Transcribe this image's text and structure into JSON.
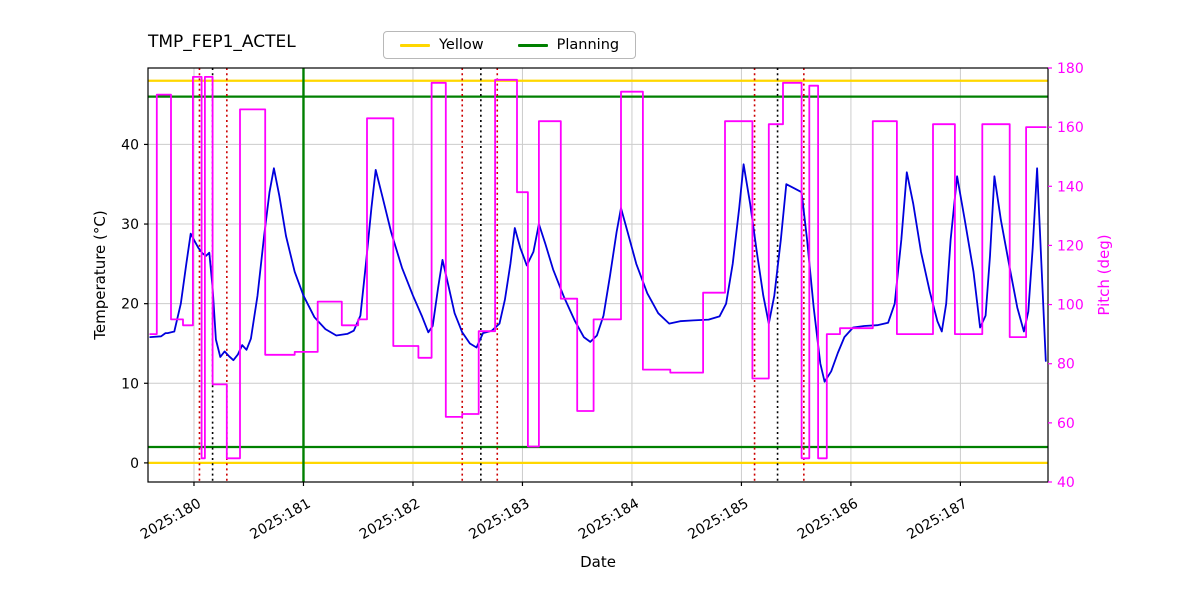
{
  "title": "TMP_FEP1_ACTEL",
  "legend": {
    "items": [
      {
        "label": "Yellow",
        "color": "#ffd700"
      },
      {
        "label": "Planning",
        "color": "#008000"
      }
    ]
  },
  "axes": {
    "xlabel": "Date",
    "ylabel_left": "Temperature (°C)",
    "ylabel_right": "Pitch (deg)"
  },
  "chart_data": {
    "type": "line",
    "title": "TMP_FEP1_ACTEL",
    "xlabel": "Date",
    "ylabel_left": "Temperature (°C)",
    "ylabel_right": "Pitch (deg)",
    "xlim": [
      179.58,
      187.8
    ],
    "ylim_left": [
      -2.4,
      49.6
    ],
    "ylim_right": [
      40,
      180
    ],
    "x_ticks": [
      "2025:180",
      "2025:181",
      "2025:182",
      "2025:183",
      "2025:184",
      "2025:185",
      "2025:186",
      "2025:187"
    ],
    "x_tick_values": [
      180,
      181,
      182,
      183,
      184,
      185,
      186,
      187
    ],
    "y_ticks_left": [
      0,
      10,
      20,
      30,
      40
    ],
    "y_ticks_right": [
      40,
      60,
      80,
      100,
      120,
      140,
      160,
      180
    ],
    "grid": true,
    "legend_position": "top-center",
    "colors": {
      "temperature": "#0000dd",
      "pitch": "#ff00ff",
      "yellow_limit": "#ffd700",
      "planning_limit": "#008000",
      "event_red": "#cc0000",
      "event_black": "#000000",
      "grid": "#cccccc"
    },
    "h_lines": [
      {
        "name": "yellow-high-limit",
        "y": 48,
        "axis": "left",
        "color": "#ffd700",
        "width": 2.2
      },
      {
        "name": "yellow-low-limit",
        "y": 0,
        "axis": "left",
        "color": "#ffd700",
        "width": 2.2
      },
      {
        "name": "planning-high-limit",
        "y": 46,
        "axis": "left",
        "color": "#008000",
        "width": 2.2
      },
      {
        "name": "planning-low-limit",
        "y": 2,
        "axis": "left",
        "color": "#008000",
        "width": 2.2
      }
    ],
    "v_lines": [
      {
        "name": "planning-event",
        "x": 181.0,
        "color": "#008000",
        "style": "solid",
        "width": 2.4
      },
      {
        "name": "red-event",
        "x": 180.05,
        "color": "#cc0000",
        "style": "dotted",
        "width": 1.6
      },
      {
        "name": "black-event",
        "x": 180.17,
        "color": "#000000",
        "style": "dotted",
        "width": 1.6
      },
      {
        "name": "red-event",
        "x": 180.3,
        "color": "#cc0000",
        "style": "dotted",
        "width": 1.6
      },
      {
        "name": "red-event",
        "x": 182.45,
        "color": "#cc0000",
        "style": "dotted",
        "width": 1.6
      },
      {
        "name": "black-event",
        "x": 182.62,
        "color": "#000000",
        "style": "dotted",
        "width": 1.6
      },
      {
        "name": "red-event",
        "x": 182.77,
        "color": "#cc0000",
        "style": "dotted",
        "width": 1.6
      },
      {
        "name": "red-event",
        "x": 185.12,
        "color": "#cc0000",
        "style": "dotted",
        "width": 1.6
      },
      {
        "name": "black-event",
        "x": 185.33,
        "color": "#000000",
        "style": "dotted",
        "width": 1.6
      },
      {
        "name": "red-event",
        "x": 185.57,
        "color": "#cc0000",
        "style": "dotted",
        "width": 1.6
      }
    ],
    "series": [
      {
        "name": "Temperature",
        "axis": "left",
        "color": "#0000dd",
        "width": 1.8,
        "x": [
          179.6,
          179.7,
          179.74,
          179.76,
          179.82,
          179.88,
          179.93,
          179.97,
          180.0,
          180.04,
          180.08,
          180.11,
          180.14,
          180.17,
          180.2,
          180.24,
          180.28,
          180.32,
          180.36,
          180.4,
          180.44,
          180.48,
          180.52,
          180.58,
          180.64,
          180.69,
          180.73,
          180.78,
          180.84,
          180.92,
          181.0,
          181.1,
          181.2,
          181.3,
          181.4,
          181.46,
          181.52,
          181.57,
          181.62,
          181.66,
          181.72,
          181.8,
          181.9,
          182.0,
          182.08,
          182.14,
          182.18,
          182.23,
          182.27,
          182.32,
          182.38,
          182.45,
          182.52,
          182.58,
          182.64,
          182.72,
          182.79,
          182.84,
          182.89,
          182.93,
          182.98,
          183.04,
          183.1,
          183.15,
          183.21,
          183.28,
          183.38,
          183.48,
          183.56,
          183.62,
          183.68,
          183.74,
          183.8,
          183.86,
          183.9,
          183.96,
          184.04,
          184.14,
          184.24,
          184.34,
          184.44,
          184.56,
          184.7,
          184.8,
          184.86,
          184.92,
          184.98,
          185.02,
          185.08,
          185.14,
          185.2,
          185.25,
          185.3,
          185.36,
          185.41,
          185.48,
          185.55,
          185.6,
          185.66,
          185.72,
          185.76,
          185.82,
          185.88,
          185.94,
          186.02,
          186.12,
          186.24,
          186.34,
          186.4,
          186.46,
          186.51,
          186.57,
          186.64,
          186.72,
          186.79,
          186.83,
          186.87,
          186.91,
          186.97,
          187.04,
          187.12,
          187.18,
          187.23,
          187.27,
          187.31,
          187.37,
          187.45,
          187.52,
          187.58,
          187.62,
          187.66,
          187.7,
          187.74,
          187.78
        ],
        "y": [
          15.8,
          15.9,
          16.3,
          16.3,
          16.5,
          20.0,
          25.0,
          28.8,
          28.0,
          27.0,
          26.3,
          26.0,
          26.4,
          22.0,
          15.5,
          13.3,
          14.0,
          13.4,
          12.9,
          13.6,
          14.8,
          14.2,
          15.6,
          21.0,
          28.5,
          34.0,
          37.0,
          33.5,
          28.5,
          24.0,
          21.0,
          18.3,
          16.8,
          16.0,
          16.2,
          16.6,
          18.5,
          25.0,
          32.0,
          36.8,
          33.5,
          29.0,
          24.5,
          21.0,
          18.5,
          16.4,
          17.2,
          22.0,
          25.5,
          22.5,
          18.8,
          16.4,
          15.0,
          14.5,
          16.3,
          16.6,
          17.5,
          20.5,
          25.0,
          29.5,
          27.0,
          24.8,
          26.5,
          30.0,
          27.5,
          24.3,
          20.8,
          17.8,
          15.8,
          15.2,
          16.0,
          18.5,
          23.5,
          29.0,
          32.0,
          29.0,
          25.0,
          21.3,
          18.8,
          17.5,
          17.8,
          17.9,
          18.0,
          18.4,
          20.0,
          25.0,
          32.0,
          37.5,
          32.5,
          26.5,
          21.0,
          17.5,
          21.0,
          28.0,
          35.0,
          34.5,
          34.0,
          28.0,
          19.5,
          12.5,
          10.2,
          11.5,
          13.8,
          15.8,
          17.0,
          17.2,
          17.3,
          17.6,
          20.0,
          28.0,
          36.5,
          32.5,
          26.5,
          21.5,
          17.8,
          16.5,
          20.0,
          28.0,
          36.0,
          30.5,
          24.0,
          17.0,
          18.5,
          26.0,
          36.0,
          30.5,
          24.5,
          19.5,
          16.5,
          19.0,
          27.0,
          37.0,
          25.0,
          12.8
        ]
      },
      {
        "name": "Pitch",
        "axis": "right",
        "color": "#ff00ff",
        "width": 1.8,
        "x": [
          179.6,
          179.66,
          179.66,
          179.79,
          179.79,
          179.9,
          179.9,
          179.99,
          179.99,
          180.07,
          180.07,
          180.1,
          180.1,
          180.17,
          180.17,
          180.3,
          180.3,
          180.42,
          180.42,
          180.65,
          180.65,
          180.92,
          180.92,
          181.13,
          181.13,
          181.35,
          181.35,
          181.5,
          181.5,
          181.58,
          181.58,
          181.82,
          181.82,
          182.05,
          182.05,
          182.17,
          182.17,
          182.3,
          182.3,
          182.45,
          182.45,
          182.6,
          182.6,
          182.75,
          182.75,
          182.95,
          182.95,
          183.05,
          183.05,
          183.15,
          183.15,
          183.35,
          183.35,
          183.5,
          183.5,
          183.65,
          183.65,
          183.9,
          183.9,
          184.1,
          184.1,
          184.35,
          184.35,
          184.65,
          184.65,
          184.85,
          184.85,
          185.1,
          185.1,
          185.25,
          185.25,
          185.38,
          185.38,
          185.55,
          185.55,
          185.62,
          185.62,
          185.7,
          185.7,
          185.78,
          185.78,
          185.9,
          185.9,
          186.2,
          186.2,
          186.42,
          186.42,
          186.75,
          186.75,
          186.95,
          186.95,
          187.2,
          187.2,
          187.45,
          187.45,
          187.6,
          187.6,
          187.78
        ],
        "y": [
          90,
          90,
          171,
          171,
          95,
          95,
          93,
          93,
          177,
          177,
          48,
          48,
          177,
          177,
          73,
          73,
          48,
          48,
          166,
          166,
          83,
          83,
          84,
          84,
          101,
          101,
          93,
          93,
          95,
          95,
          163,
          163,
          86,
          86,
          82,
          82,
          175,
          175,
          62,
          62,
          63,
          63,
          91,
          91,
          176,
          176,
          138,
          138,
          52,
          52,
          162,
          162,
          102,
          102,
          64,
          64,
          95,
          95,
          172,
          172,
          78,
          78,
          77,
          77,
          104,
          104,
          162,
          162,
          75,
          75,
          161,
          161,
          175,
          175,
          48,
          48,
          174,
          174,
          48,
          48,
          90,
          90,
          92,
          92,
          162,
          162,
          90,
          90,
          161,
          161,
          90,
          90,
          161,
          161,
          89,
          89,
          160,
          160
        ]
      }
    ]
  }
}
